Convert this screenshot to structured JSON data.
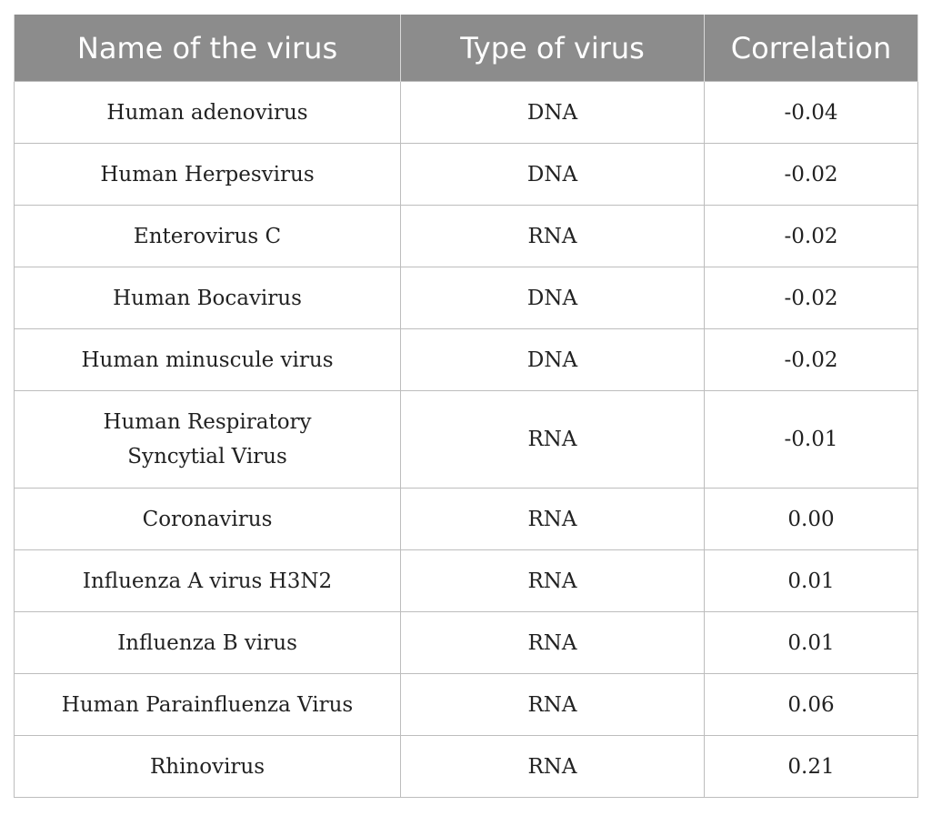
{
  "table": {
    "headers": [
      "Name of the virus",
      "Type of virus",
      "Correlation"
    ],
    "rows": [
      {
        "name": "Human adenovirus",
        "type": "DNA",
        "correlation": "-0.04"
      },
      {
        "name": "Human Herpesvirus",
        "type": "DNA",
        "correlation": "-0.02"
      },
      {
        "name": "Enterovirus C",
        "type": "RNA",
        "correlation": "-0.02"
      },
      {
        "name": "Human Bocavirus",
        "type": "DNA",
        "correlation": "-0.02"
      },
      {
        "name": "Human minuscule virus",
        "type": "DNA",
        "correlation": "-0.02"
      },
      {
        "name": "Human Respiratory Syncytial Virus",
        "type": "RNA",
        "correlation": "-0.01"
      },
      {
        "name": "Coronavirus",
        "type": "RNA",
        "correlation": "0.00"
      },
      {
        "name": "Influenza A virus H3N2",
        "type": "RNA",
        "correlation": "0.01"
      },
      {
        "name": "Influenza B virus",
        "type": "RNA",
        "correlation": "0.01"
      },
      {
        "name": "Human Parainfluenza Virus",
        "type": "RNA",
        "correlation": "0.06"
      },
      {
        "name": "Rhinovirus",
        "type": "RNA",
        "correlation": "0.21"
      }
    ]
  }
}
